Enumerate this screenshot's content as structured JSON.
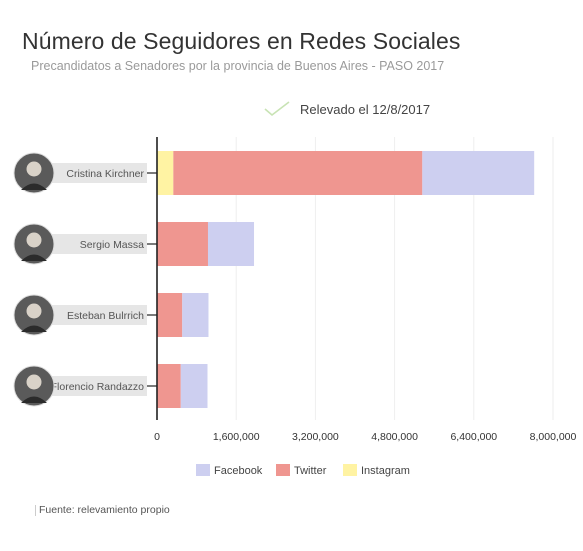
{
  "header": {
    "title": "Número de Seguidores en Redes Sociales",
    "subtitle": "Precandidatos a Senadores por la provincia de Buenos Aires - PASO 2017",
    "relevado": "Relevado el 12/8/2017",
    "check_icon": "check-icon"
  },
  "footer": {
    "source": "Fuente: relevamiento propio"
  },
  "chart_data": {
    "type": "bar",
    "orientation": "horizontal",
    "stacked": true,
    "categories": [
      "Cristina Kirchner",
      "Sergio Massa",
      "Esteban Bulrrich",
      "Florencio Randazzo"
    ],
    "series": [
      {
        "name": "Instagram",
        "color": "#fff3a3",
        "values": [
          330000,
          0,
          0,
          0
        ]
      },
      {
        "name": "Twitter",
        "color": "#ef9690",
        "values": [
          5030000,
          1030000,
          510000,
          480000
        ]
      },
      {
        "name": "Facebook",
        "color": "#cdcff0",
        "values": [
          2260000,
          930000,
          530000,
          540000
        ]
      }
    ],
    "legend_order": [
      "Facebook",
      "Twitter",
      "Instagram"
    ],
    "legend_position": "bottom",
    "xlim": [
      0,
      8000000
    ],
    "xticks": [
      0,
      1600000,
      3200000,
      4800000,
      6400000,
      8000000
    ],
    "xtick_labels": [
      "0",
      "1,600,000",
      "3,200,000",
      "4,800,000",
      "6,400,000",
      "8,000,000"
    ],
    "grid": "vertical",
    "avatar_icons": [
      "avatar-icon",
      "avatar-icon",
      "avatar-icon",
      "avatar-icon"
    ]
  }
}
